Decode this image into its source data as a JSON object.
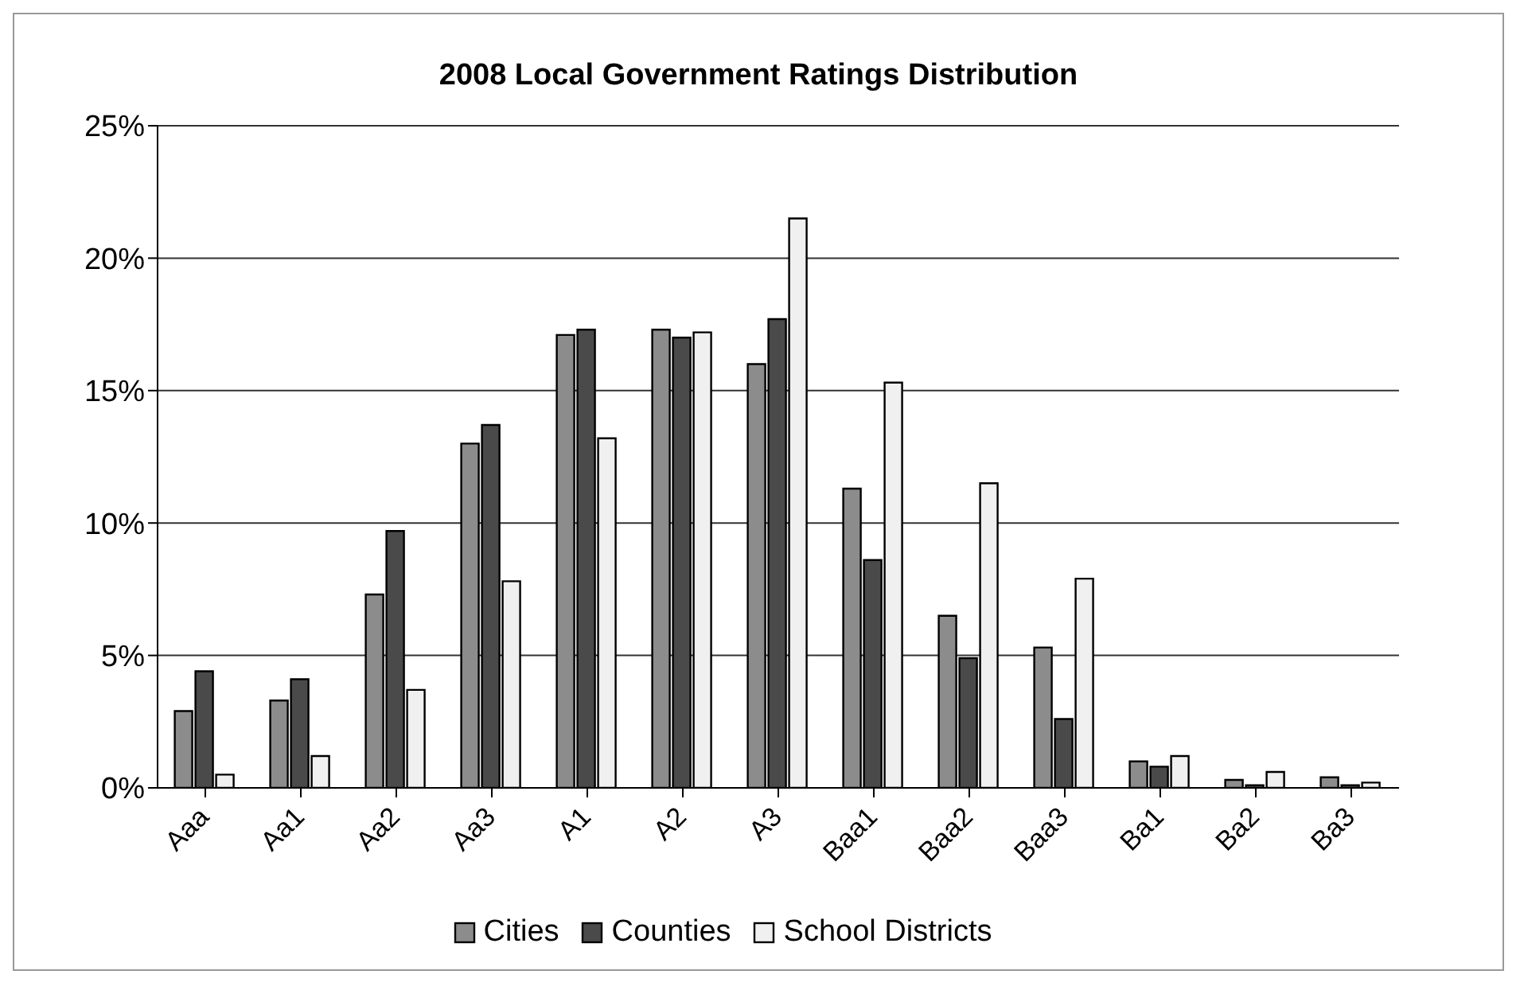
{
  "chart_data": {
    "type": "bar",
    "title": "2008 Local Government Ratings Distribution",
    "categories": [
      "Aaa",
      "Aa1",
      "Aa2",
      "Aa3",
      "A1",
      "A2",
      "A3",
      "Baa1",
      "Baa2",
      "Baa3",
      "Ba1",
      "Ba2",
      "Ba3"
    ],
    "series": [
      {
        "name": "Cities",
        "color": "#8c8c8c",
        "values": [
          2.9,
          3.3,
          7.3,
          13.0,
          17.1,
          17.3,
          16.0,
          11.3,
          6.5,
          5.3,
          1.0,
          0.3,
          0.4
        ]
      },
      {
        "name": "Counties",
        "color": "#4a4a4a",
        "values": [
          4.4,
          4.1,
          9.7,
          13.7,
          17.3,
          17.0,
          17.7,
          8.6,
          4.9,
          2.6,
          0.8,
          0.1,
          0.1
        ]
      },
      {
        "name": "School Districts",
        "color": "#f0f0f0",
        "values": [
          0.5,
          1.2,
          3.7,
          7.8,
          13.2,
          17.2,
          21.5,
          15.3,
          11.5,
          7.9,
          1.2,
          0.6,
          0.2
        ]
      }
    ],
    "ylim": [
      0,
      25
    ],
    "yticks": [
      {
        "value": 0,
        "label": "0%"
      },
      {
        "value": 5,
        "label": "5%"
      },
      {
        "value": 10,
        "label": "10%"
      },
      {
        "value": 15,
        "label": "15%"
      },
      {
        "value": 20,
        "label": "20%"
      },
      {
        "value": 25,
        "label": "25%"
      }
    ],
    "grid": "y",
    "legend": "bottom"
  }
}
